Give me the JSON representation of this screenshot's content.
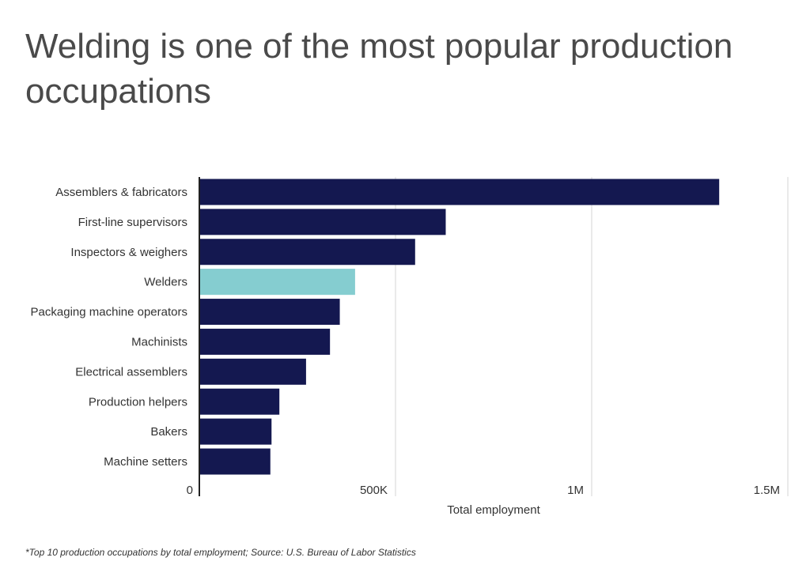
{
  "chart_data": {
    "type": "bar",
    "orientation": "horizontal",
    "title": "Welding is one of the most popular production occupations",
    "xlabel": "Total employment",
    "ylabel": "",
    "categories": [
      "Assemblers & fabricators",
      "First-line supervisors",
      "Inspectors & weighers",
      "Welders",
      "Packaging machine operators",
      "Machinists",
      "Electrical assemblers",
      "Production helpers",
      "Bakers",
      "Machine setters"
    ],
    "values": [
      1325000,
      628000,
      550000,
      397000,
      358000,
      333000,
      272000,
      204000,
      184000,
      181000
    ],
    "highlight_category": "Welders",
    "colors": {
      "bar": "#141850",
      "highlight": "#85cdd0",
      "grid": "#d4d4d4",
      "axis": "#222222"
    },
    "xlim": [
      0,
      1500000
    ],
    "xticks": [
      0,
      500000,
      1000000,
      1500000
    ],
    "xtick_labels": [
      "0",
      "500K",
      "1M",
      "1.5M"
    ],
    "grid": true,
    "legend": "none",
    "footnote": "*Top 10 production occupations by total employment; Source: U.S. Bureau of Labor Statistics"
  }
}
